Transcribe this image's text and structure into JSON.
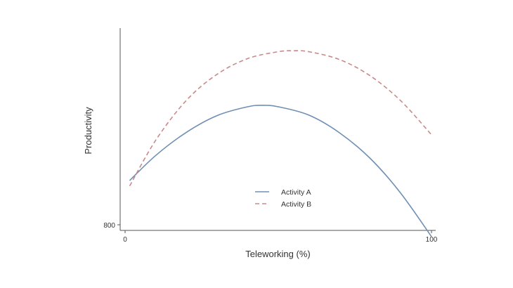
{
  "chart_data": {
    "type": "line",
    "title": "",
    "xlabel": "Teleworking (%)",
    "ylabel": "Productivity",
    "xlim": [
      0,
      100
    ],
    "ylim": [
      800,
      1200
    ],
    "x_ticks": [
      "0",
      "100"
    ],
    "y_ticks": [
      "800"
    ],
    "grid": false,
    "legend_position": "lower-center",
    "series": [
      {
        "name": "Activity A",
        "style": "solid",
        "color": "#6f8fb3",
        "x": [
          1.5,
          10,
          20,
          30,
          40,
          45,
          50,
          60,
          70,
          80,
          90,
          100
        ],
        "y": [
          890,
          941,
          988,
          1022,
          1040,
          1043,
          1040,
          1023,
          987,
          935,
          864,
          776
        ]
      },
      {
        "name": "Activity B",
        "style": "dashed",
        "color": "#c98a8a",
        "x": [
          1.5,
          10,
          20,
          30,
          40,
          50,
          55,
          60,
          70,
          80,
          90,
          100
        ],
        "y": [
          879,
          972,
          1053,
          1106,
          1138,
          1152,
          1154,
          1152,
          1136,
          1103,
          1052,
          983
        ]
      }
    ]
  }
}
